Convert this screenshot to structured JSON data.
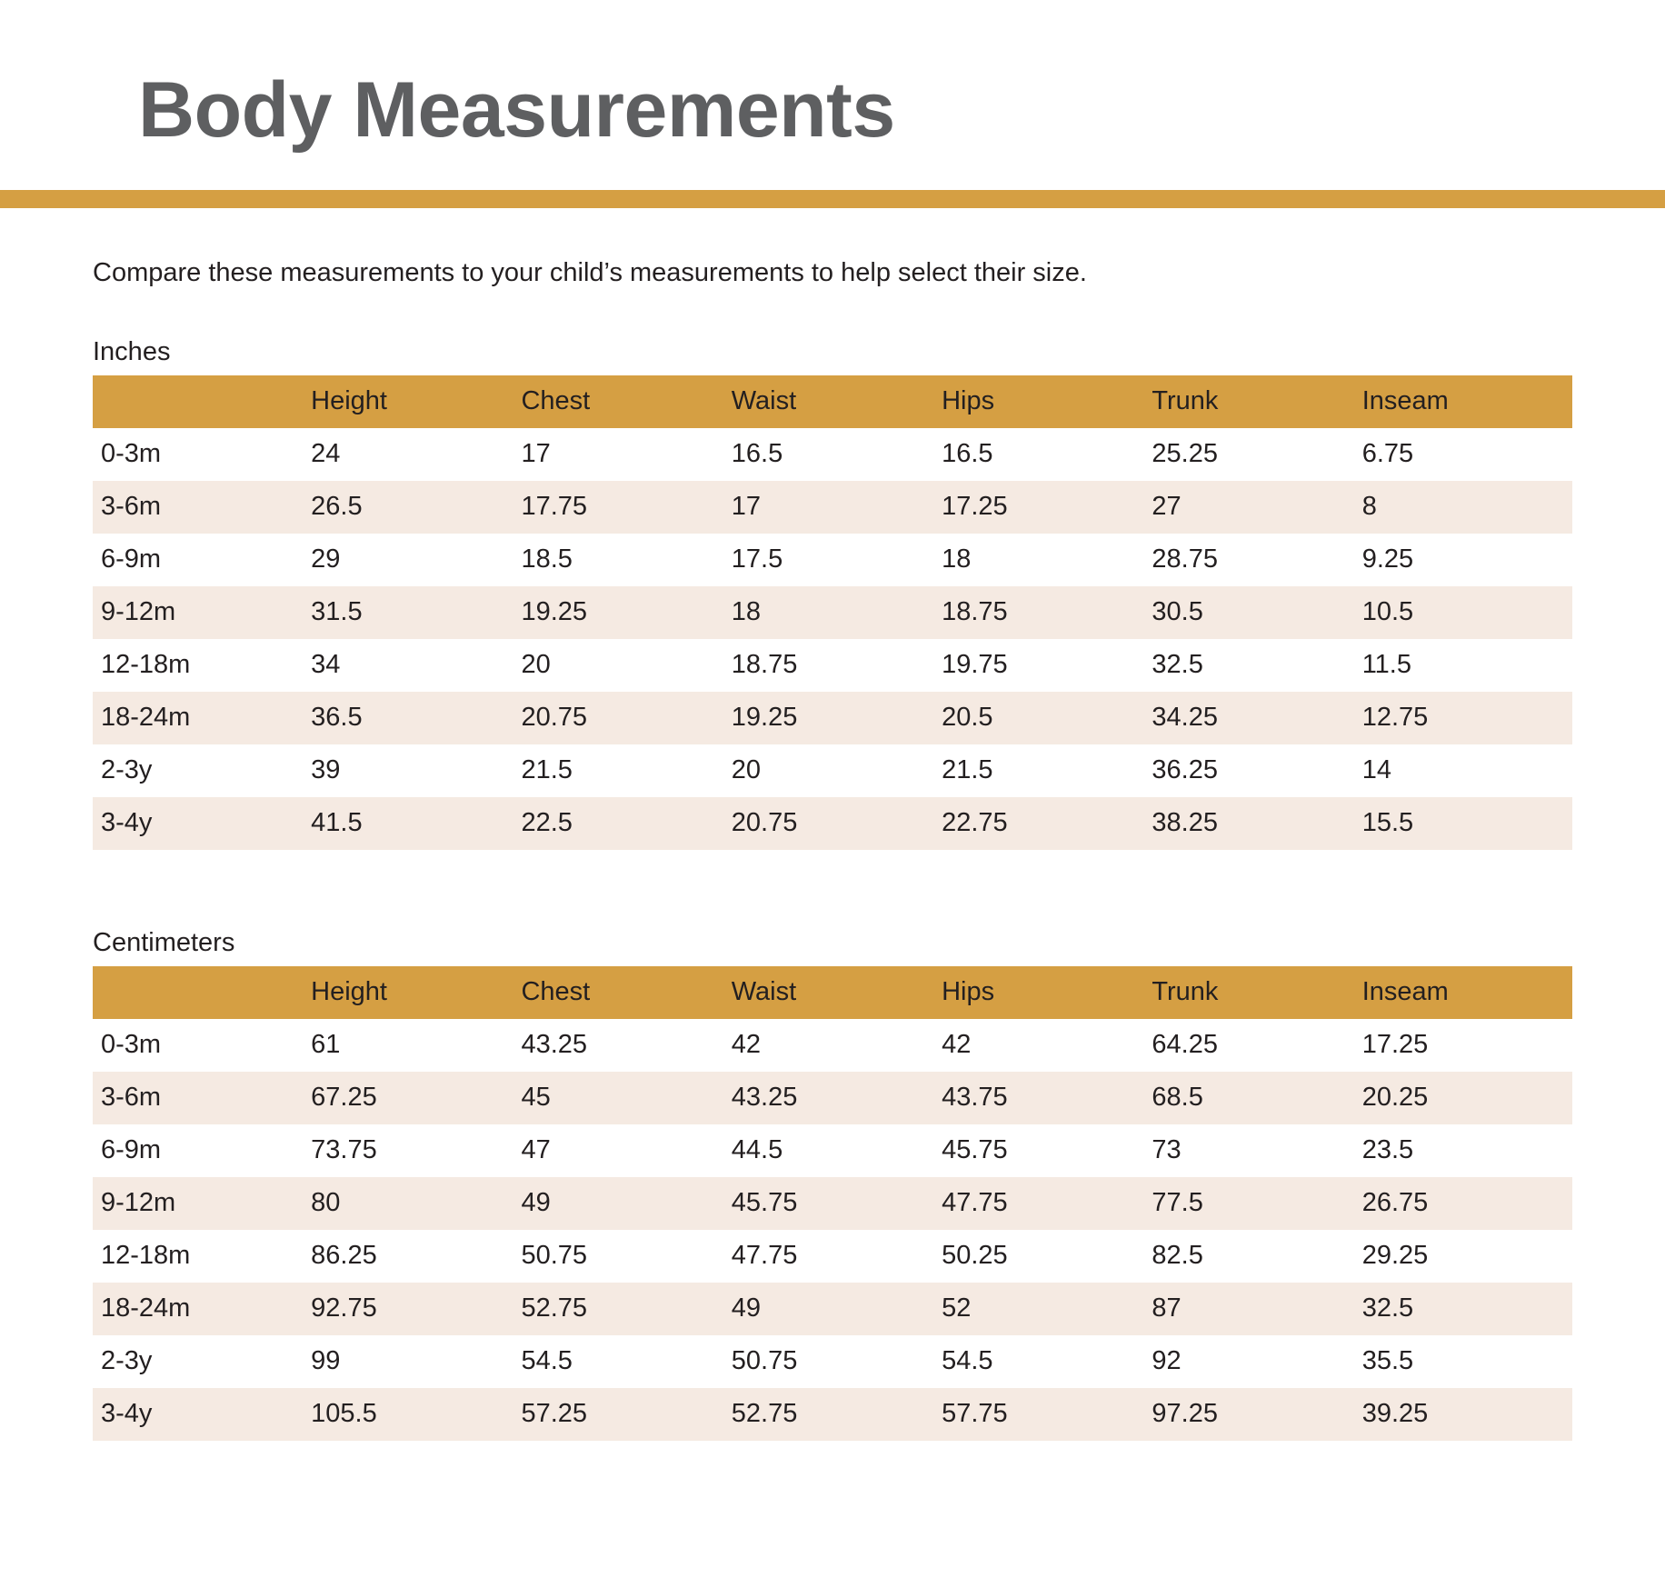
{
  "page": {
    "title": "Body Measurements",
    "intro": "Compare these measurements to your child’s measurements to help select their size."
  },
  "colors": {
    "accent_gold": "#d59f43",
    "row_stripe": "#f5eae2",
    "text": "#231f20",
    "title_gray": "#5e5f61"
  },
  "tables": [
    {
      "unit_label": "Inches",
      "columns": [
        "",
        "Height",
        "Chest",
        "Waist",
        "Hips",
        "Trunk",
        "Inseam"
      ],
      "rows": [
        {
          "label": "0-3m",
          "values": [
            "24",
            "17",
            "16.5",
            "16.5",
            "25.25",
            "6.75"
          ]
        },
        {
          "label": "3-6m",
          "values": [
            "26.5",
            "17.75",
            "17",
            "17.25",
            "27",
            "8"
          ]
        },
        {
          "label": "6-9m",
          "values": [
            "29",
            "18.5",
            "17.5",
            "18",
            "28.75",
            "9.25"
          ]
        },
        {
          "label": "9-12m",
          "values": [
            "31.5",
            "19.25",
            "18",
            "18.75",
            "30.5",
            "10.5"
          ]
        },
        {
          "label": "12-18m",
          "values": [
            "34",
            "20",
            "18.75",
            "19.75",
            "32.5",
            "11.5"
          ]
        },
        {
          "label": "18-24m",
          "values": [
            "36.5",
            "20.75",
            "19.25",
            "20.5",
            "34.25",
            "12.75"
          ]
        },
        {
          "label": "2-3y",
          "values": [
            "39",
            "21.5",
            "20",
            "21.5",
            "36.25",
            "14"
          ]
        },
        {
          "label": "3-4y",
          "values": [
            "41.5",
            "22.5",
            "20.75",
            "22.75",
            "38.25",
            "15.5"
          ]
        }
      ]
    },
    {
      "unit_label": "Centimeters",
      "columns": [
        "",
        "Height",
        "Chest",
        "Waist",
        "Hips",
        "Trunk",
        "Inseam"
      ],
      "rows": [
        {
          "label": "0-3m",
          "values": [
            "61",
            "43.25",
            "42",
            "42",
            "64.25",
            "17.25"
          ]
        },
        {
          "label": "3-6m",
          "values": [
            "67.25",
            "45",
            "43.25",
            "43.75",
            "68.5",
            "20.25"
          ]
        },
        {
          "label": "6-9m",
          "values": [
            "73.75",
            "47",
            "44.5",
            "45.75",
            "73",
            "23.5"
          ]
        },
        {
          "label": "9-12m",
          "values": [
            "80",
            "49",
            "45.75",
            "47.75",
            "77.5",
            "26.75"
          ]
        },
        {
          "label": "12-18m",
          "values": [
            "86.25",
            "50.75",
            "47.75",
            "50.25",
            "82.5",
            "29.25"
          ]
        },
        {
          "label": "18-24m",
          "values": [
            "92.75",
            "52.75",
            "49",
            "52",
            "87",
            "32.5"
          ]
        },
        {
          "label": "2-3y",
          "values": [
            "99",
            "54.5",
            "50.75",
            "54.5",
            "92",
            "35.5"
          ]
        },
        {
          "label": "3-4y",
          "values": [
            "105.5",
            "57.25",
            "52.75",
            "57.75",
            "97.25",
            "39.25"
          ]
        }
      ]
    }
  ]
}
